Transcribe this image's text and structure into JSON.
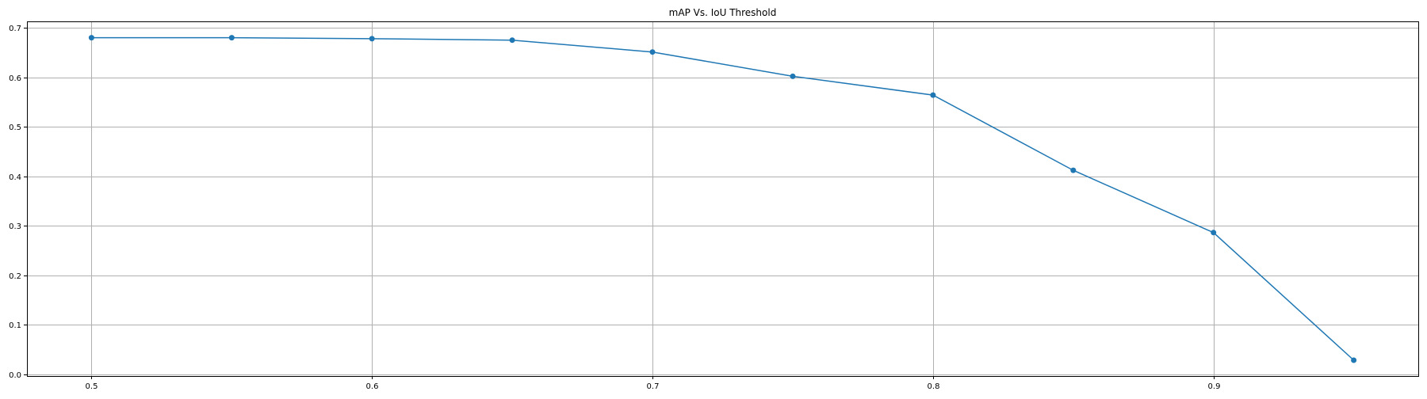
{
  "chart_data": {
    "type": "line",
    "title": "mAP Vs. IoU Threshold",
    "xlabel": "",
    "ylabel": "",
    "grid": true,
    "xlim": [
      0.477,
      0.973
    ],
    "ylim": [
      -0.004,
      0.713
    ],
    "x_ticks": [
      0.5,
      0.6,
      0.7,
      0.8,
      0.9
    ],
    "x_tick_labels": [
      "0.5",
      "0.6",
      "0.7",
      "0.8",
      "0.9"
    ],
    "y_ticks": [
      0.0,
      0.1,
      0.2,
      0.3,
      0.4,
      0.5,
      0.6,
      0.7
    ],
    "y_tick_labels": [
      "0.0",
      "0.1",
      "0.2",
      "0.3",
      "0.4",
      "0.5",
      "0.6",
      "0.7"
    ],
    "series": [
      {
        "name": "mAP",
        "color": "#1f77b4",
        "marker": "circle",
        "x": [
          0.5,
          0.55,
          0.6,
          0.65,
          0.7,
          0.75,
          0.8,
          0.85,
          0.9,
          0.95
        ],
        "y": [
          0.68,
          0.68,
          0.678,
          0.675,
          0.651,
          0.602,
          0.564,
          0.412,
          0.286,
          0.028
        ]
      }
    ]
  }
}
